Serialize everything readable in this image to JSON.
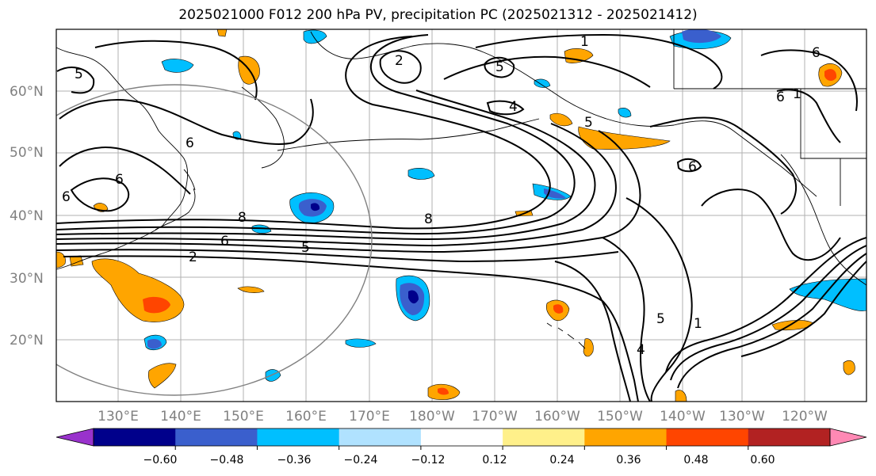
{
  "title": "2025021000 F012 200 hPa PV, precipitation PC (2025021312 - 2025021412)",
  "map": {
    "lat_ticks": [
      "60°N",
      "50°N",
      "40°N",
      "30°N",
      "20°N"
    ],
    "lon_ticks": [
      "130°E",
      "140°E",
      "150°E",
      "160°E",
      "170°E",
      "180°W",
      "170°W",
      "160°W",
      "150°W",
      "140°W",
      "130°W",
      "120°W"
    ],
    "contour_labels": [
      "5",
      "6",
      "6",
      "6",
      "8",
      "6",
      "2",
      "5",
      "8",
      "2",
      "5",
      "4",
      "5",
      "1",
      "5",
      "4",
      "6",
      "6",
      "1",
      "6",
      "1"
    ],
    "colors": {
      "land_outline": "#000000",
      "grid": "#b0b0b0",
      "tick_label": "#808080",
      "circle": "#808080",
      "contour": "#000000"
    }
  },
  "colorbar": {
    "tick_labels": [
      "−0.60",
      "−0.48",
      "−0.36",
      "−0.24",
      "−0.12",
      "0.12",
      "0.24",
      "0.36",
      "0.48",
      "0.60"
    ],
    "colors": [
      "#9932cc",
      "#00008b",
      "#3a5fcd",
      "#00bfff",
      "#b0e2ff",
      "#ffffff",
      "#fff08a",
      "#ffa500",
      "#ff4500",
      "#b22222",
      "#ff89b4"
    ]
  }
}
